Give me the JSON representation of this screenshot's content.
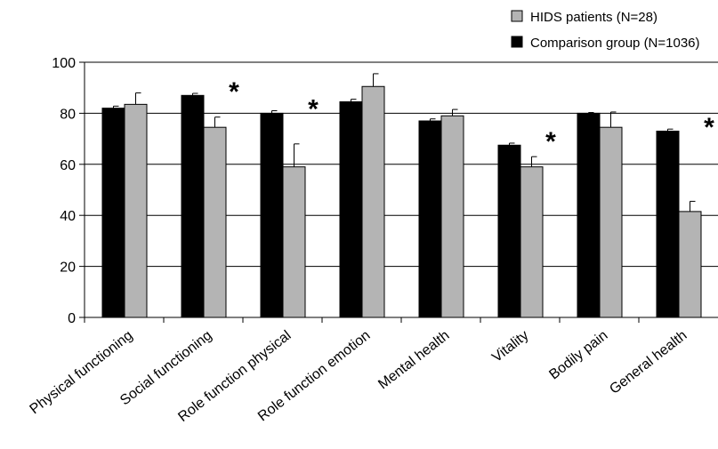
{
  "chart_data": {
    "type": "bar",
    "title": "",
    "xlabel": "",
    "ylabel": "",
    "ylim": [
      0,
      100
    ],
    "yticks": [
      0,
      20,
      40,
      60,
      80,
      100
    ],
    "grid": true,
    "legend_position": "top-right",
    "categories": [
      "Physical functioning",
      "Social functioning",
      "Role function physical",
      "Role function emotion",
      "Mental health",
      "Vitality",
      "Bodily pain",
      "General health"
    ],
    "series": [
      {
        "name": "Comparison group (N=1036)",
        "color": "#000000",
        "values": [
          82,
          87,
          80,
          84.5,
          77,
          67.5,
          80,
          73
        ],
        "error": [
          0.8,
          0.8,
          1,
          1,
          0.8,
          0.8,
          0.3,
          0.8
        ]
      },
      {
        "name": "HIDS patients (N=28)",
        "color": "#b4b4b4",
        "values": [
          83.5,
          74.5,
          59,
          90.5,
          79,
          59,
          74.5,
          41.5
        ],
        "error": [
          4.5,
          4,
          9,
          5,
          2.5,
          4,
          6,
          4
        ]
      }
    ],
    "significance_marker": "*",
    "significant_categories": [
      "Social functioning",
      "Role function physical",
      "Vitality",
      "General health"
    ]
  }
}
